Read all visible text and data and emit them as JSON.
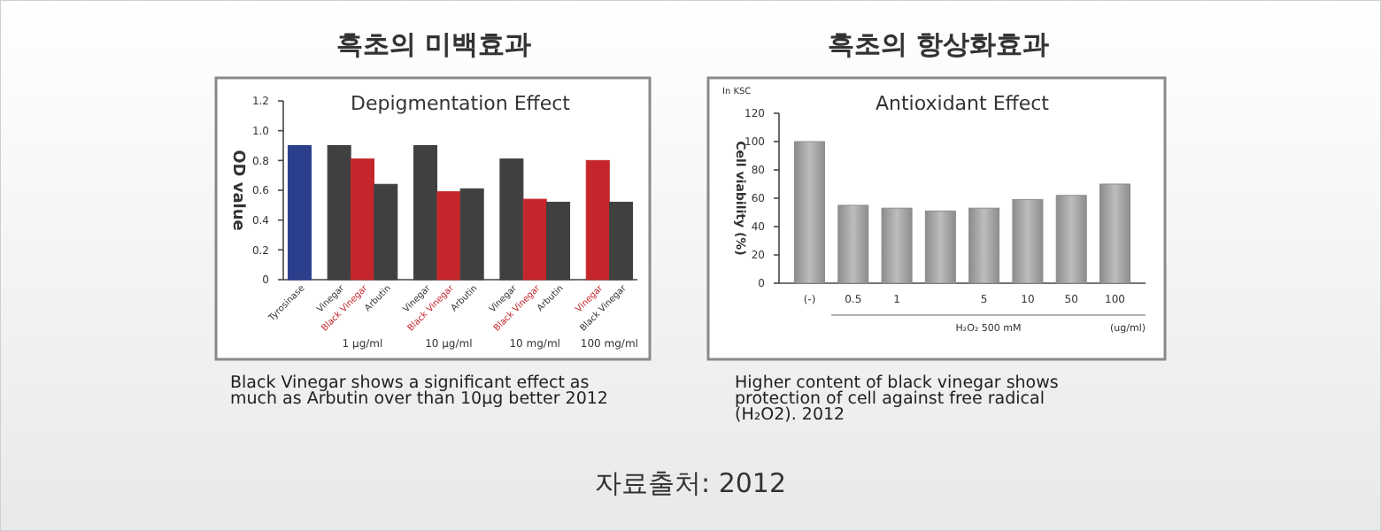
{
  "chart_data": [
    {
      "type": "bar",
      "title": "흑초의 미백효과",
      "subtitle": "Depigmentation Effect",
      "ylabel": "OD value",
      "categories": [
        "Tyrosinase",
        "Vinegar",
        "Black Vinegar",
        "Arbutin",
        "Vinegar",
        "Black Vinegar",
        "Arbutin",
        "Vinegar",
        "Black Vinegar",
        "Arbutin",
        "Vinegar",
        "Black Vinegar"
      ],
      "values": [
        0.9,
        0.9,
        0.81,
        0.64,
        0.9,
        0.59,
        0.61,
        0.81,
        0.54,
        0.52,
        0.8,
        0.52
      ],
      "colors": [
        "#2b3f8c",
        "#404040",
        "#c4262b",
        "#404040",
        "#404040",
        "#c4262b",
        "#404040",
        "#404040",
        "#c4262b",
        "#404040",
        "#c4262b",
        "#404040"
      ],
      "ylim": [
        0,
        1.2
      ],
      "yticks": [
        0,
        0.2,
        0.4,
        0.6,
        0.8,
        {
          "value": 1,
          "label": "1.0"
        },
        1.2
      ],
      "annotations": [
        "1 μg/ml",
        "10 μg/ml",
        "10 mg/ml",
        "100 mg/ml",
        "Black Vinegar shows a significant effect as much as Arbutin over than 10μg better 2012",
        "자료출처: 2012"
      ]
    },
    {
      "type": "bar",
      "title": "흑초의 항상화효과",
      "subtitle": "Antioxidant Effect",
      "ylabel": "Cell viability (%)",
      "xlabel": "H₂O₂ 500 mM",
      "categories": [
        "(-)",
        "0.5",
        "1",
        null,
        "5",
        "10",
        "50",
        "100"
      ],
      "values": [
        100,
        55,
        53,
        51,
        53,
        59,
        62,
        70
      ],
      "color": "#8c8c8c",
      "ylim": [
        0,
        120
      ],
      "yticks": [
        0,
        20,
        40,
        60,
        80,
        100,
        120
      ],
      "annotations": [
        "In KSC",
        "(ug/ml)",
        "Higher content of black vinegar shows protection of cell against free radical (H₂O2). 2012"
      ]
    }
  ]
}
